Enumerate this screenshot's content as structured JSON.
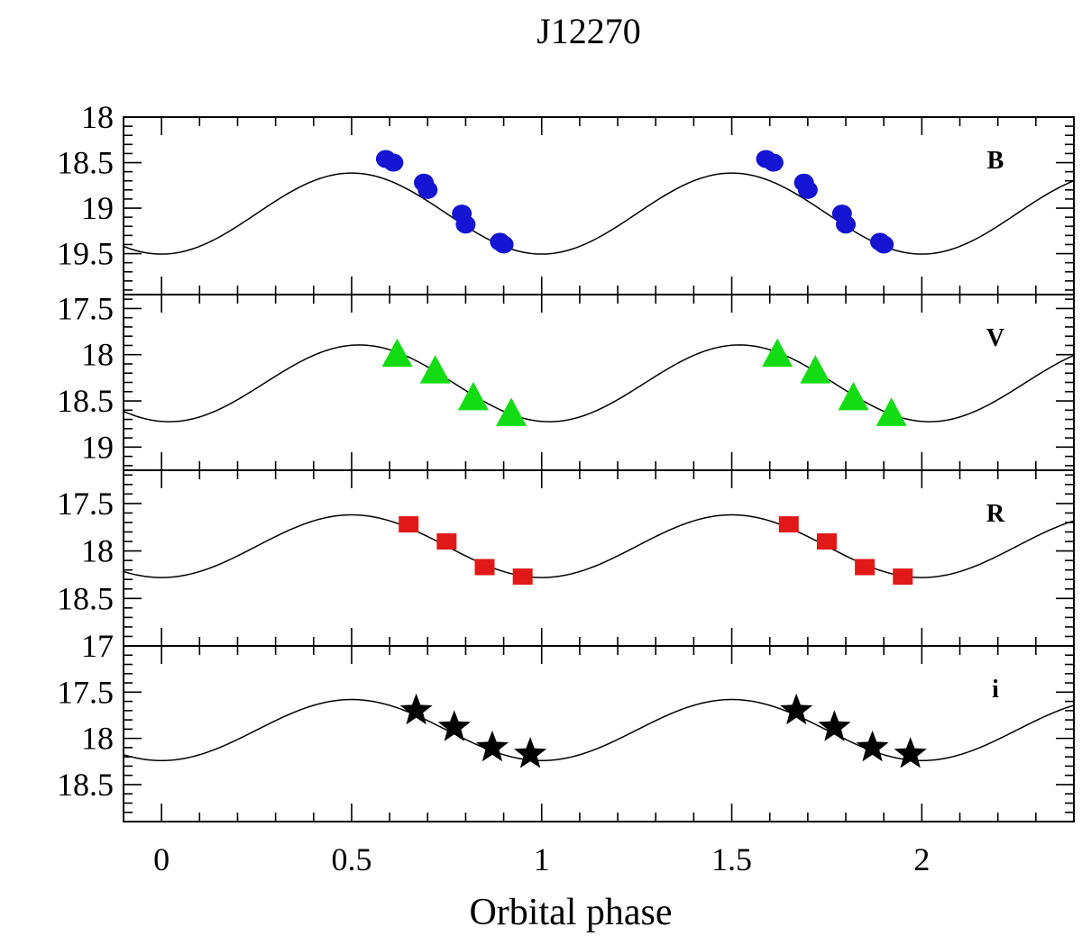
{
  "chart_data": {
    "type": "scatter",
    "title": "J12270",
    "xlabel": "Orbital phase",
    "ylabel": "",
    "xlim": [
      -0.1,
      2.4
    ],
    "x_ticks": [
      0,
      0.5,
      1,
      1.5,
      2
    ],
    "x_tick_labels": [
      "0",
      "0.5",
      "1",
      "1.5",
      "2"
    ],
    "shared_x_axis": true,
    "y_axis_inverted": true,
    "grid": false,
    "legend": "none",
    "panels": [
      {
        "band": "B",
        "ylim": [
          18,
          19.95
        ],
        "y_ticks": [
          18,
          18.5,
          19,
          19.5
        ],
        "y_tick_labels": [
          "18",
          "18.5",
          "19",
          "19.5"
        ],
        "marker": "circle",
        "color": "#1414d2",
        "points": {
          "x": [
            0.59,
            0.61,
            0.69,
            0.7,
            0.79,
            0.8,
            0.89,
            0.9,
            1.59,
            1.61,
            1.69,
            1.7,
            1.79,
            1.8,
            1.89,
            1.9
          ],
          "y": [
            18.46,
            18.5,
            18.72,
            18.8,
            19.06,
            19.18,
            19.37,
            19.4,
            18.46,
            18.5,
            18.72,
            18.8,
            19.06,
            19.18,
            19.37,
            19.4
          ]
        },
        "model": {
          "mean": 19.06,
          "amplitude": 0.445,
          "phase_of_minimum": 0.0
        }
      },
      {
        "band": "V",
        "ylim": [
          17.35,
          19.25
        ],
        "y_ticks": [
          17.5,
          18,
          18.5,
          19
        ],
        "y_tick_labels": [
          "17.5",
          "18",
          "18.5",
          "19"
        ],
        "marker": "triangle",
        "color": "#14dc14",
        "points": {
          "x": [
            0.62,
            0.72,
            0.82,
            0.92,
            1.62,
            1.72,
            1.82,
            1.92
          ],
          "y": [
            17.99,
            18.17,
            18.46,
            18.63,
            17.99,
            18.17,
            18.46,
            18.63
          ]
        },
        "model": {
          "mean": 18.31,
          "amplitude": 0.415,
          "phase_of_minimum": 0.02
        }
      },
      {
        "band": "R",
        "ylim": [
          17.15,
          19.0
        ],
        "y_ticks": [
          17.5,
          18,
          18.5
        ],
        "y_tick_labels": [
          "17.5",
          "18",
          "18.5"
        ],
        "marker": "square",
        "color": "#e01818",
        "points": {
          "x": [
            0.65,
            0.75,
            0.85,
            0.95,
            1.65,
            1.75,
            1.85,
            1.95
          ],
          "y": [
            17.72,
            17.9,
            18.17,
            18.27,
            17.72,
            17.9,
            18.17,
            18.27
          ]
        },
        "model": {
          "mean": 17.95,
          "amplitude": 0.33,
          "phase_of_minimum": 0.0
        }
      },
      {
        "band": "i",
        "ylim": [
          17.0,
          18.9
        ],
        "y_ticks": [
          17,
          17.5,
          18,
          18.5
        ],
        "y_tick_labels": [
          "17",
          "17.5",
          "18",
          "18.5"
        ],
        "marker": "star",
        "color": "#000000",
        "points": {
          "x": [
            0.67,
            0.77,
            0.87,
            0.97,
            1.67,
            1.77,
            1.87,
            1.97
          ],
          "y": [
            17.7,
            17.88,
            18.1,
            18.17,
            17.7,
            17.88,
            18.1,
            18.17
          ]
        },
        "model": {
          "mean": 17.91,
          "amplitude": 0.33,
          "phase_of_minimum": 0.0
        }
      }
    ]
  }
}
